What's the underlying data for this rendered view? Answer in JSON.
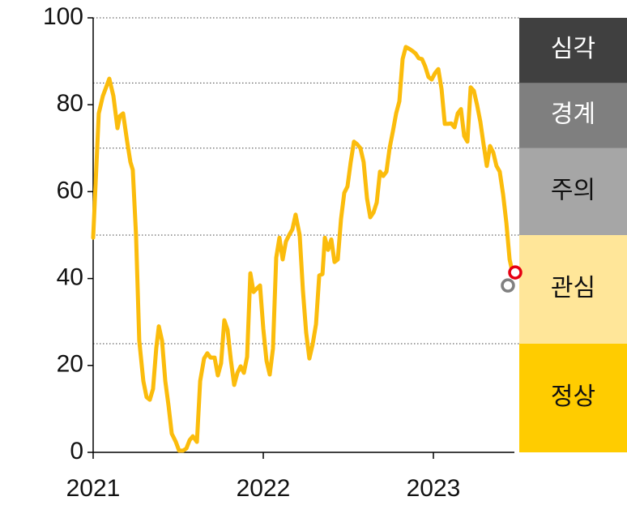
{
  "chart_data": {
    "type": "line",
    "x": [
      2021,
      2021.033,
      2021.057,
      2021.095,
      2021.119,
      2021.143,
      2021.157,
      2021.176,
      2021.2,
      2021.219,
      2021.233,
      2021.252,
      2021.271,
      2021.295,
      2021.314,
      2021.333,
      2021.352,
      2021.371,
      2021.386,
      2021.405,
      2021.424,
      2021.443,
      2021.462,
      2021.486,
      2021.505,
      2021.529,
      2021.548,
      2021.567,
      2021.586,
      2021.61,
      2021.629,
      2021.652,
      2021.671,
      2021.69,
      2021.714,
      2021.733,
      2021.752,
      2021.771,
      2021.79,
      2021.81,
      2021.829,
      2021.848,
      2021.867,
      2021.886,
      2021.905,
      2021.924,
      2021.943,
      2021.967,
      2021.981,
      2022.0,
      2022.019,
      2022.038,
      2022.057,
      2022.076,
      2022.095,
      2022.114,
      2022.133,
      2022.152,
      2022.171,
      2022.19,
      2022.214,
      2022.233,
      2022.252,
      2022.271,
      2022.29,
      2022.31,
      2022.329,
      2022.348,
      2022.362,
      2022.381,
      2022.4,
      2022.419,
      2022.438,
      2022.457,
      2022.476,
      2022.495,
      2022.514,
      2022.533,
      2022.552,
      2022.571,
      2022.59,
      2022.61,
      2022.629,
      2022.648,
      2022.667,
      2022.686,
      2022.705,
      2022.724,
      2022.743,
      2022.762,
      2022.781,
      2022.8,
      2022.819,
      2022.838,
      2022.857,
      2022.876,
      2022.895,
      2022.914,
      2022.933,
      2022.952,
      2022.971,
      2022.99,
      2023.01,
      2023.029,
      2023.048,
      2023.067,
      2023.086,
      2023.105,
      2023.124,
      2023.143,
      2023.162,
      2023.181,
      2023.2,
      2023.219,
      2023.238,
      2023.257,
      2023.276,
      2023.295,
      2023.314,
      2023.333,
      2023.352,
      2023.371,
      2023.39,
      2023.41,
      2023.429,
      2023.448,
      2023.467
    ],
    "series": [
      {
        "color": "#fbbc0c",
        "values": [
          49.4,
          78,
          82,
          86,
          82,
          74.6,
          77.4,
          78,
          71.5,
          66.8,
          65,
          50,
          25.7,
          16.4,
          12.7,
          12.1,
          14.6,
          24,
          29,
          25.7,
          16.4,
          10.8,
          4.3,
          2.4,
          0.4,
          0.4,
          0.9,
          2.8,
          3.7,
          2.4,
          16.4,
          21.6,
          22.8,
          21.8,
          21.8,
          17.7,
          20.5,
          30.4,
          28.2,
          21.1,
          15.5,
          18.3,
          19.8,
          18.3,
          22,
          41.2,
          36.9,
          37.9,
          38.4,
          28.5,
          21.1,
          17.9,
          23.9,
          44.8,
          49.4,
          44.4,
          48.5,
          50,
          51.3,
          54.7,
          50,
          37.3,
          27.6,
          21.6,
          24.8,
          29.5,
          40.7,
          41,
          49.4,
          46.6,
          49,
          43.8,
          44.4,
          53.7,
          59.7,
          61.2,
          66.8,
          71.5,
          70.9,
          70,
          66.8,
          58.4,
          54.1,
          55.2,
          57.5,
          64.6,
          63.6,
          64.6,
          70.1,
          73.9,
          78,
          80.8,
          90.5,
          93.3,
          92.9,
          92.4,
          91.8,
          90.7,
          90.5,
          88.8,
          86.4,
          85.8,
          87.3,
          88.2,
          83.6,
          75.6,
          75.6,
          75.7,
          74.8,
          78,
          79,
          72.8,
          71.5,
          84,
          83.2,
          79.9,
          76.1,
          70.9,
          65.9,
          70.5,
          69,
          65.9,
          64.6,
          59.3,
          52.8,
          44.4,
          41
        ]
      }
    ],
    "highlights": [
      {
        "x": 2023.481,
        "y": 41.4,
        "color": "#e60012"
      },
      {
        "x": 2023.438,
        "y": 38.4,
        "color": "#808080"
      }
    ],
    "bands": [
      {
        "label": "정상",
        "from": 0,
        "to": 25,
        "color": "#ffcc00",
        "text_color": "#111111"
      },
      {
        "label": "관심",
        "from": 25,
        "to": 50,
        "color": "#ffe699",
        "text_color": "#111111"
      },
      {
        "label": "주의",
        "from": 50,
        "to": 70,
        "color": "#a6a6a6",
        "text_color": "#111111"
      },
      {
        "label": "경계",
        "from": 70,
        "to": 85,
        "color": "#7f7f7f",
        "text_color": "#ffffff"
      },
      {
        "label": "심각",
        "from": 85,
        "to": 100,
        "color": "#404040",
        "text_color": "#ffffff"
      }
    ],
    "xlim": [
      2021,
      2023.5
    ],
    "xticks": [
      2021,
      2022,
      2023
    ],
    "ylim": [
      0,
      100
    ],
    "yticks": [
      0,
      20,
      40,
      60,
      80,
      100
    ]
  }
}
